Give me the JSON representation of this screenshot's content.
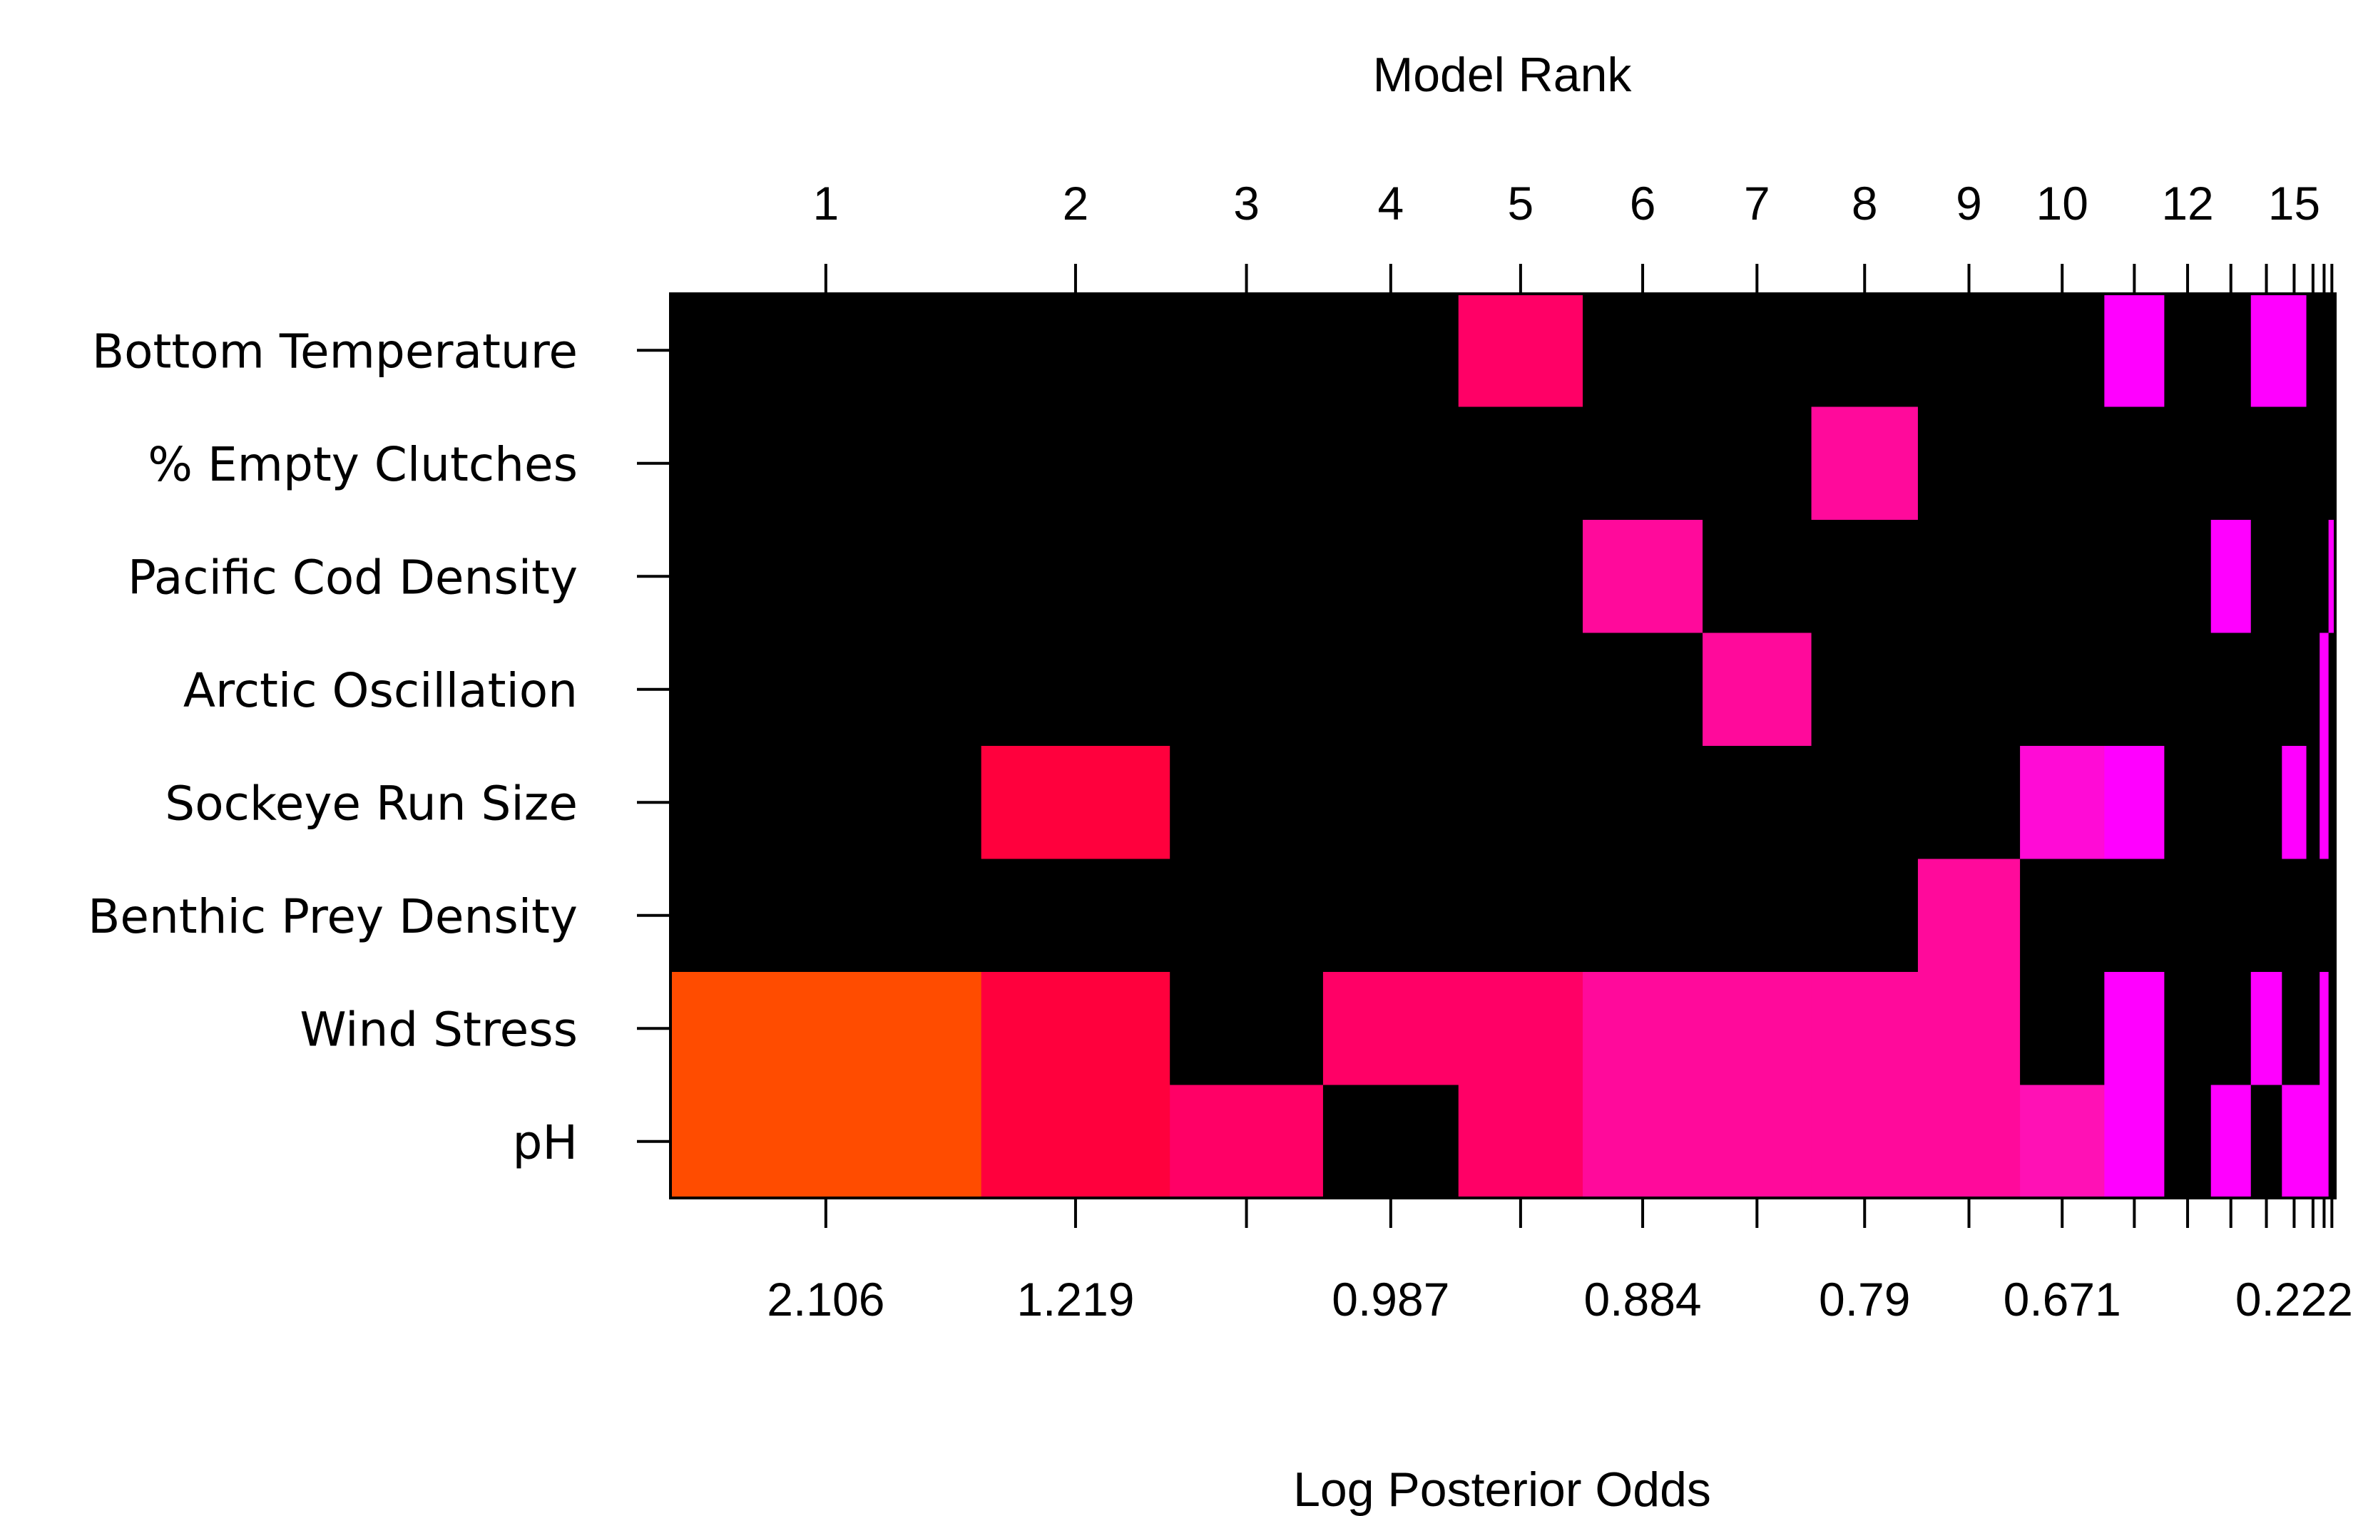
{
  "chart_data": {
    "type": "heatmap",
    "top_axis_title": "Model Rank",
    "bottom_axis_title": "Log Posterior Odds",
    "rank_tick_labels": [
      {
        "label": "1",
        "rank": 1
      },
      {
        "label": "2",
        "rank": 2
      },
      {
        "label": "3",
        "rank": 3
      },
      {
        "label": "4",
        "rank": 4
      },
      {
        "label": "5",
        "rank": 5
      },
      {
        "label": "6",
        "rank": 6
      },
      {
        "label": "7",
        "rank": 7
      },
      {
        "label": "8",
        "rank": 8
      },
      {
        "label": "9",
        "rank": 9
      },
      {
        "label": "10",
        "rank": 10
      },
      {
        "label": "12",
        "rank": 12
      },
      {
        "label": "15",
        "rank": 15
      }
    ],
    "odds_tick_labels": [
      {
        "label": "2.106",
        "rank": 1
      },
      {
        "label": "1.219",
        "rank": 2
      },
      {
        "label": "0.987",
        "rank": 4
      },
      {
        "label": "0.884",
        "rank": 6
      },
      {
        "label": "0.79",
        "rank": 8
      },
      {
        "label": "0.671",
        "rank": 10
      },
      {
        "label": "0.222",
        "rank": 15
      }
    ],
    "variables": [
      "Bottom Temperature",
      "% Empty Clutches",
      "Pacific Cod Density",
      "Arctic Oscillation",
      "Sockeye Run Size",
      "Benthic Prey Density",
      "Wind Stress",
      "pH"
    ],
    "models": [
      {
        "rank": 1,
        "width": 1.4
      },
      {
        "rank": 2,
        "width": 0.85
      },
      {
        "rank": 3,
        "width": 0.69
      },
      {
        "rank": 4,
        "width": 0.61
      },
      {
        "rank": 5,
        "width": 0.56
      },
      {
        "rank": 6,
        "width": 0.54
      },
      {
        "rank": 7,
        "width": 0.49
      },
      {
        "rank": 8,
        "width": 0.48
      },
      {
        "rank": 9,
        "width": 0.46
      },
      {
        "rank": 10,
        "width": 0.38
      },
      {
        "rank": 11,
        "width": 0.27
      },
      {
        "rank": 12,
        "width": 0.21
      },
      {
        "rank": 13,
        "width": 0.18
      },
      {
        "rank": 14,
        "width": 0.14
      },
      {
        "rank": 15,
        "width": 0.11
      },
      {
        "rank": 16,
        "width": 0.06
      },
      {
        "rank": 17,
        "width": 0.04
      },
      {
        "rank": 18,
        "width": 0.03
      }
    ],
    "colors": [
      "#000000",
      "#ff4c00",
      "#ff003d",
      "#ff0066",
      "#ff0a9b",
      "#ff11b5",
      "#ff0bd6",
      "#ff00ff"
    ],
    "matrix": [
      [
        0,
        0,
        0,
        0,
        3,
        0,
        0,
        0,
        0,
        0,
        7,
        0,
        0,
        7,
        7,
        0,
        0,
        0
      ],
      [
        0,
        0,
        0,
        0,
        0,
        0,
        0,
        4,
        0,
        0,
        0,
        0,
        0,
        0,
        0,
        0,
        0,
        0
      ],
      [
        0,
        0,
        0,
        0,
        0,
        4,
        0,
        0,
        0,
        0,
        0,
        0,
        7,
        0,
        0,
        0,
        0,
        7
      ],
      [
        0,
        0,
        0,
        0,
        0,
        0,
        4,
        0,
        0,
        0,
        0,
        0,
        0,
        0,
        0,
        0,
        7,
        0
      ],
      [
        0,
        2,
        0,
        0,
        0,
        0,
        0,
        0,
        0,
        6,
        7,
        0,
        0,
        0,
        7,
        0,
        7,
        0
      ],
      [
        0,
        0,
        0,
        0,
        0,
        0,
        0,
        0,
        4,
        0,
        0,
        0,
        0,
        0,
        0,
        0,
        0,
        0
      ],
      [
        1,
        2,
        0,
        3,
        3,
        4,
        4,
        4,
        4,
        0,
        7,
        0,
        0,
        7,
        0,
        0,
        7,
        0
      ],
      [
        1,
        2,
        3,
        0,
        3,
        4,
        4,
        4,
        4,
        5,
        7,
        0,
        7,
        0,
        7,
        7,
        7,
        0
      ]
    ]
  }
}
